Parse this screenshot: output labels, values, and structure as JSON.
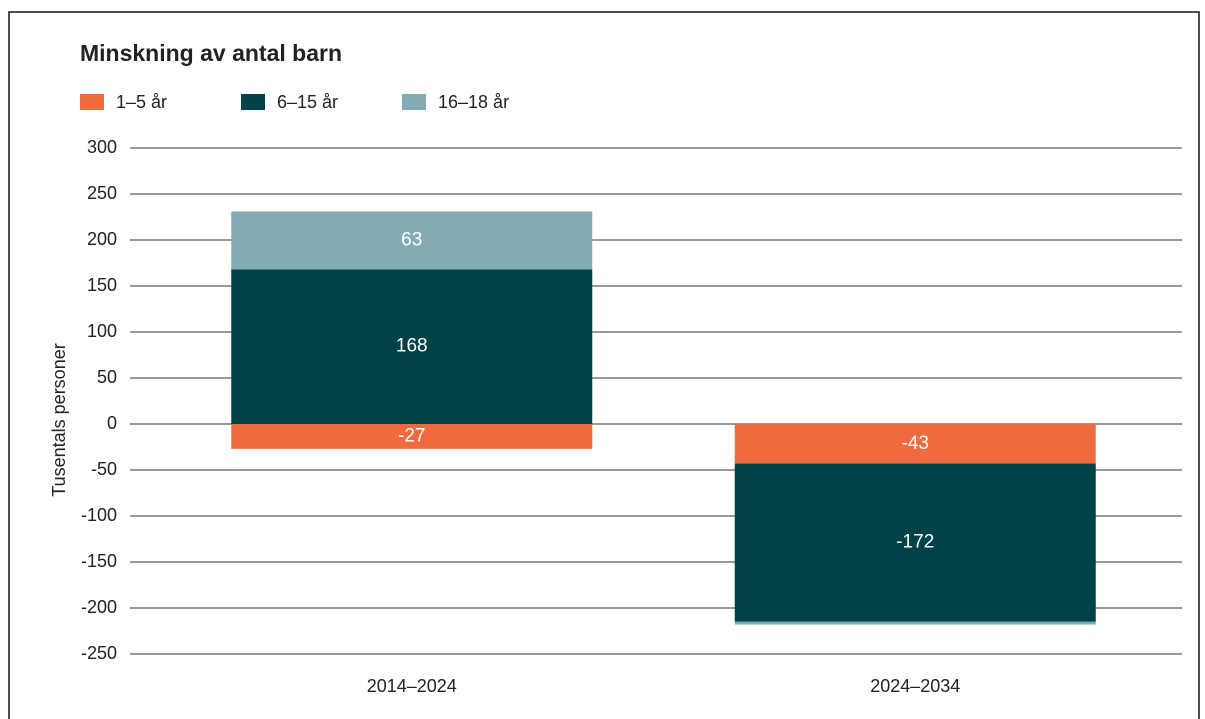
{
  "chart_data": {
    "type": "bar",
    "stacked": true,
    "title": "Minskning av antal barn",
    "y_label": "Tusentals personer",
    "categories": [
      "2014–2024",
      "2024–2034"
    ],
    "series": [
      {
        "name": "1–5 år",
        "color": "#ef6a3f",
        "values": [
          -27,
          -43
        ]
      },
      {
        "name": "6–15 år",
        "color": "#004247",
        "values": [
          168,
          -172
        ]
      },
      {
        "name": "16–18 år",
        "color": "#84abb4",
        "values": [
          63,
          -3
        ]
      }
    ],
    "ylim": [
      -250,
      300
    ],
    "yticks": [
      -250,
      -200,
      -150,
      -100,
      -50,
      0,
      50,
      100,
      150,
      200,
      250,
      300
    ],
    "grid": true,
    "legend": "top"
  }
}
